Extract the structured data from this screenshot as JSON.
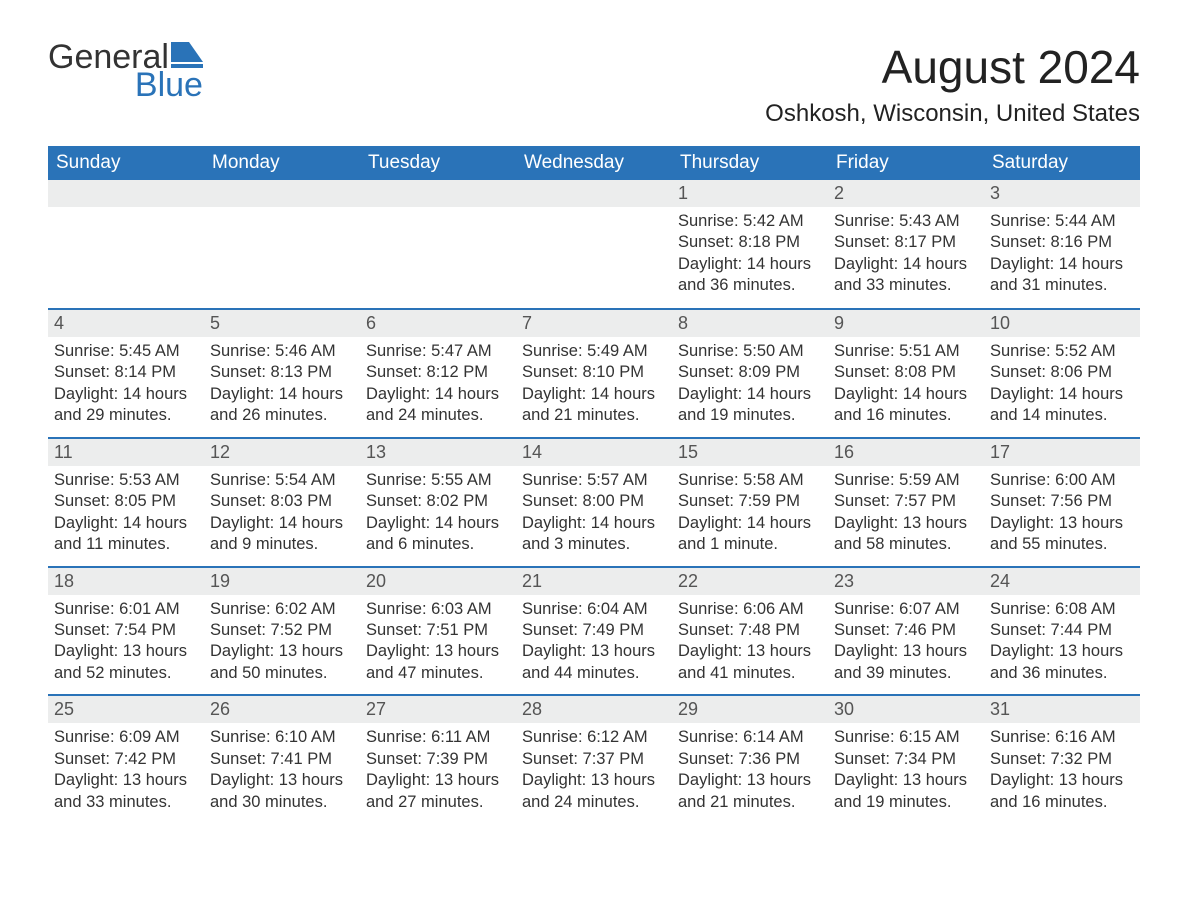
{
  "logo": {
    "text_general": "General",
    "text_blue": "Blue",
    "icon_color": "#2a73b8"
  },
  "title": "August 2024",
  "location": "Oshkosh, Wisconsin, United States",
  "colors": {
    "header_bg": "#2a73b8",
    "header_text": "#ffffff",
    "daynum_bg": "#eceded",
    "body_text": "#333333",
    "border": "#2a73b8",
    "background": "#ffffff"
  },
  "fonts": {
    "title_size": 46,
    "location_size": 24,
    "dayheader_size": 19,
    "daynum_size": 18,
    "body_size": 16.5
  },
  "day_names": [
    "Sunday",
    "Monday",
    "Tuesday",
    "Wednesday",
    "Thursday",
    "Friday",
    "Saturday"
  ],
  "weeks": [
    [
      {
        "num": "",
        "sunrise": "",
        "sunset": "",
        "daylight1": "",
        "daylight2": ""
      },
      {
        "num": "",
        "sunrise": "",
        "sunset": "",
        "daylight1": "",
        "daylight2": ""
      },
      {
        "num": "",
        "sunrise": "",
        "sunset": "",
        "daylight1": "",
        "daylight2": ""
      },
      {
        "num": "",
        "sunrise": "",
        "sunset": "",
        "daylight1": "",
        "daylight2": ""
      },
      {
        "num": "1",
        "sunrise": "Sunrise: 5:42 AM",
        "sunset": "Sunset: 8:18 PM",
        "daylight1": "Daylight: 14 hours",
        "daylight2": "and 36 minutes."
      },
      {
        "num": "2",
        "sunrise": "Sunrise: 5:43 AM",
        "sunset": "Sunset: 8:17 PM",
        "daylight1": "Daylight: 14 hours",
        "daylight2": "and 33 minutes."
      },
      {
        "num": "3",
        "sunrise": "Sunrise: 5:44 AM",
        "sunset": "Sunset: 8:16 PM",
        "daylight1": "Daylight: 14 hours",
        "daylight2": "and 31 minutes."
      }
    ],
    [
      {
        "num": "4",
        "sunrise": "Sunrise: 5:45 AM",
        "sunset": "Sunset: 8:14 PM",
        "daylight1": "Daylight: 14 hours",
        "daylight2": "and 29 minutes."
      },
      {
        "num": "5",
        "sunrise": "Sunrise: 5:46 AM",
        "sunset": "Sunset: 8:13 PM",
        "daylight1": "Daylight: 14 hours",
        "daylight2": "and 26 minutes."
      },
      {
        "num": "6",
        "sunrise": "Sunrise: 5:47 AM",
        "sunset": "Sunset: 8:12 PM",
        "daylight1": "Daylight: 14 hours",
        "daylight2": "and 24 minutes."
      },
      {
        "num": "7",
        "sunrise": "Sunrise: 5:49 AM",
        "sunset": "Sunset: 8:10 PM",
        "daylight1": "Daylight: 14 hours",
        "daylight2": "and 21 minutes."
      },
      {
        "num": "8",
        "sunrise": "Sunrise: 5:50 AM",
        "sunset": "Sunset: 8:09 PM",
        "daylight1": "Daylight: 14 hours",
        "daylight2": "and 19 minutes."
      },
      {
        "num": "9",
        "sunrise": "Sunrise: 5:51 AM",
        "sunset": "Sunset: 8:08 PM",
        "daylight1": "Daylight: 14 hours",
        "daylight2": "and 16 minutes."
      },
      {
        "num": "10",
        "sunrise": "Sunrise: 5:52 AM",
        "sunset": "Sunset: 8:06 PM",
        "daylight1": "Daylight: 14 hours",
        "daylight2": "and 14 minutes."
      }
    ],
    [
      {
        "num": "11",
        "sunrise": "Sunrise: 5:53 AM",
        "sunset": "Sunset: 8:05 PM",
        "daylight1": "Daylight: 14 hours",
        "daylight2": "and 11 minutes."
      },
      {
        "num": "12",
        "sunrise": "Sunrise: 5:54 AM",
        "sunset": "Sunset: 8:03 PM",
        "daylight1": "Daylight: 14 hours",
        "daylight2": "and 9 minutes."
      },
      {
        "num": "13",
        "sunrise": "Sunrise: 5:55 AM",
        "sunset": "Sunset: 8:02 PM",
        "daylight1": "Daylight: 14 hours",
        "daylight2": "and 6 minutes."
      },
      {
        "num": "14",
        "sunrise": "Sunrise: 5:57 AM",
        "sunset": "Sunset: 8:00 PM",
        "daylight1": "Daylight: 14 hours",
        "daylight2": "and 3 minutes."
      },
      {
        "num": "15",
        "sunrise": "Sunrise: 5:58 AM",
        "sunset": "Sunset: 7:59 PM",
        "daylight1": "Daylight: 14 hours",
        "daylight2": "and 1 minute."
      },
      {
        "num": "16",
        "sunrise": "Sunrise: 5:59 AM",
        "sunset": "Sunset: 7:57 PM",
        "daylight1": "Daylight: 13 hours",
        "daylight2": "and 58 minutes."
      },
      {
        "num": "17",
        "sunrise": "Sunrise: 6:00 AM",
        "sunset": "Sunset: 7:56 PM",
        "daylight1": "Daylight: 13 hours",
        "daylight2": "and 55 minutes."
      }
    ],
    [
      {
        "num": "18",
        "sunrise": "Sunrise: 6:01 AM",
        "sunset": "Sunset: 7:54 PM",
        "daylight1": "Daylight: 13 hours",
        "daylight2": "and 52 minutes."
      },
      {
        "num": "19",
        "sunrise": "Sunrise: 6:02 AM",
        "sunset": "Sunset: 7:52 PM",
        "daylight1": "Daylight: 13 hours",
        "daylight2": "and 50 minutes."
      },
      {
        "num": "20",
        "sunrise": "Sunrise: 6:03 AM",
        "sunset": "Sunset: 7:51 PM",
        "daylight1": "Daylight: 13 hours",
        "daylight2": "and 47 minutes."
      },
      {
        "num": "21",
        "sunrise": "Sunrise: 6:04 AM",
        "sunset": "Sunset: 7:49 PM",
        "daylight1": "Daylight: 13 hours",
        "daylight2": "and 44 minutes."
      },
      {
        "num": "22",
        "sunrise": "Sunrise: 6:06 AM",
        "sunset": "Sunset: 7:48 PM",
        "daylight1": "Daylight: 13 hours",
        "daylight2": "and 41 minutes."
      },
      {
        "num": "23",
        "sunrise": "Sunrise: 6:07 AM",
        "sunset": "Sunset: 7:46 PM",
        "daylight1": "Daylight: 13 hours",
        "daylight2": "and 39 minutes."
      },
      {
        "num": "24",
        "sunrise": "Sunrise: 6:08 AM",
        "sunset": "Sunset: 7:44 PM",
        "daylight1": "Daylight: 13 hours",
        "daylight2": "and 36 minutes."
      }
    ],
    [
      {
        "num": "25",
        "sunrise": "Sunrise: 6:09 AM",
        "sunset": "Sunset: 7:42 PM",
        "daylight1": "Daylight: 13 hours",
        "daylight2": "and 33 minutes."
      },
      {
        "num": "26",
        "sunrise": "Sunrise: 6:10 AM",
        "sunset": "Sunset: 7:41 PM",
        "daylight1": "Daylight: 13 hours",
        "daylight2": "and 30 minutes."
      },
      {
        "num": "27",
        "sunrise": "Sunrise: 6:11 AM",
        "sunset": "Sunset: 7:39 PM",
        "daylight1": "Daylight: 13 hours",
        "daylight2": "and 27 minutes."
      },
      {
        "num": "28",
        "sunrise": "Sunrise: 6:12 AM",
        "sunset": "Sunset: 7:37 PM",
        "daylight1": "Daylight: 13 hours",
        "daylight2": "and 24 minutes."
      },
      {
        "num": "29",
        "sunrise": "Sunrise: 6:14 AM",
        "sunset": "Sunset: 7:36 PM",
        "daylight1": "Daylight: 13 hours",
        "daylight2": "and 21 minutes."
      },
      {
        "num": "30",
        "sunrise": "Sunrise: 6:15 AM",
        "sunset": "Sunset: 7:34 PM",
        "daylight1": "Daylight: 13 hours",
        "daylight2": "and 19 minutes."
      },
      {
        "num": "31",
        "sunrise": "Sunrise: 6:16 AM",
        "sunset": "Sunset: 7:32 PM",
        "daylight1": "Daylight: 13 hours",
        "daylight2": "and 16 minutes."
      }
    ]
  ]
}
